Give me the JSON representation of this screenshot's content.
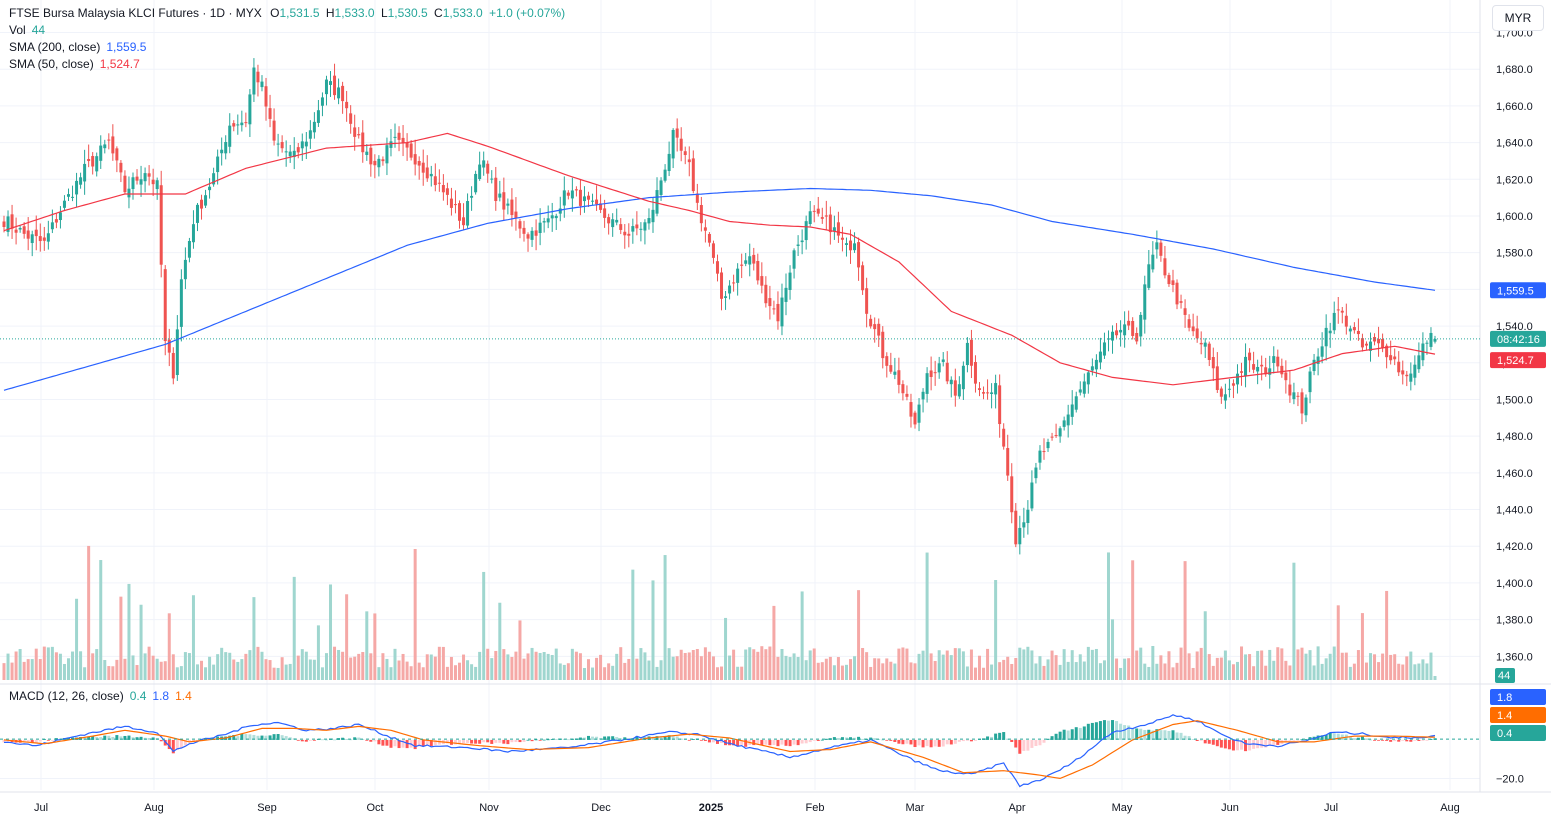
{
  "header": {
    "symbol": "FTSE Bursa Malaysia KLCI Futures",
    "interval": "1D",
    "exchange": "MYX",
    "open_label": "O",
    "open": "1,531.5",
    "high_label": "H",
    "high": "1,533.0",
    "low_label": "L",
    "low": "1,530.5",
    "close_label": "C",
    "close": "1,533.0",
    "change": "+1.0 (+0.07%)"
  },
  "indicators": {
    "vol_label": "Vol",
    "vol_value": "44",
    "sma200_label": "SMA (200, close)",
    "sma200_value": "1,559.5",
    "sma50_label": "SMA (50, close)",
    "sma50_value": "1,524.7",
    "macd_label": "MACD (12, 26, close)",
    "macd_hist": "0.4",
    "macd_line": "1.8",
    "macd_signal": "1.4"
  },
  "currency": "MYR",
  "colors": {
    "up": "#26a69a",
    "down": "#ef5350",
    "vol_up": "#9fd6cf",
    "vol_down": "#f5a8a6",
    "sma200": "#2962ff",
    "sma50": "#f23645",
    "macd": "#2962ff",
    "signal": "#ff6d00",
    "grid": "#f0f3fa",
    "text": "#131722"
  },
  "chart_data": {
    "type": "candlestick",
    "price_axis": {
      "ticks": [
        1360,
        1380,
        1400,
        1420,
        1440,
        1460,
        1480,
        1500,
        1520,
        1540,
        1560,
        1580,
        1600,
        1620,
        1640,
        1660,
        1680,
        1700
      ],
      "labels": [
        "1,360.0",
        "1,380.0",
        "1,400.0",
        "1,420.0",
        "1,440.0",
        "1,460.0",
        "1,480.0",
        "1,500.0",
        "1,520.0",
        "1,540.0",
        "1,560.0",
        "1,580.0",
        "1,600.0",
        "1,620.0",
        "1,640.0",
        "1,660.0",
        "1,680.0",
        "1,700.0"
      ],
      "range": [
        1346,
        1715
      ]
    },
    "macd_axis": {
      "ticks": [
        -20
      ],
      "labels": [
        "−20.0"
      ],
      "range": [
        -26,
        28
      ]
    },
    "time_axis": [
      "Jul",
      "Aug",
      "Sep",
      "Oct",
      "Nov",
      "Dec",
      "2025",
      "Feb",
      "Mar",
      "Apr",
      "May",
      "Jun",
      "Jul",
      "Aug"
    ],
    "badges": {
      "sma200": "1,559.5",
      "countdown": "08:42:16",
      "sma50": "1,524.7",
      "volume": "44",
      "macd": "1.8",
      "signal": "1.4",
      "hist": "0.4"
    },
    "last_price": 1533.0,
    "close_anchors": [
      [
        0,
        1598
      ],
      [
        5,
        1590
      ],
      [
        10,
        1585
      ],
      [
        14,
        1603
      ],
      [
        20,
        1625
      ],
      [
        26,
        1640
      ],
      [
        30,
        1614
      ],
      [
        35,
        1625
      ],
      [
        38,
        1616
      ],
      [
        40,
        1530
      ],
      [
        42,
        1515
      ],
      [
        44,
        1565
      ],
      [
        47,
        1598
      ],
      [
        52,
        1622
      ],
      [
        56,
        1650
      ],
      [
        60,
        1652
      ],
      [
        62,
        1680
      ],
      [
        64,
        1670
      ],
      [
        67,
        1640
      ],
      [
        72,
        1632
      ],
      [
        76,
        1646
      ],
      [
        80,
        1672
      ],
      [
        84,
        1666
      ],
      [
        88,
        1640
      ],
      [
        92,
        1628
      ],
      [
        97,
        1640
      ],
      [
        102,
        1632
      ],
      [
        106,
        1622
      ],
      [
        110,
        1610
      ],
      [
        114,
        1596
      ],
      [
        118,
        1632
      ],
      [
        122,
        1612
      ],
      [
        126,
        1600
      ],
      [
        130,
        1590
      ],
      [
        135,
        1597
      ],
      [
        140,
        1614
      ],
      [
        145,
        1606
      ],
      [
        150,
        1598
      ],
      [
        155,
        1590
      ],
      [
        160,
        1597
      ],
      [
        163,
        1620
      ],
      [
        166,
        1643
      ],
      [
        170,
        1626
      ],
      [
        172,
        1606
      ],
      [
        175,
        1585
      ],
      [
        178,
        1555
      ],
      [
        182,
        1570
      ],
      [
        185,
        1578
      ],
      [
        188,
        1560
      ],
      [
        192,
        1545
      ],
      [
        196,
        1580
      ],
      [
        200,
        1600
      ],
      [
        205,
        1595
      ],
      [
        209,
        1582
      ],
      [
        211,
        1588
      ],
      [
        214,
        1550
      ],
      [
        218,
        1525
      ],
      [
        222,
        1510
      ],
      [
        226,
        1485
      ],
      [
        229,
        1515
      ],
      [
        233,
        1518
      ],
      [
        236,
        1502
      ],
      [
        239,
        1530
      ],
      [
        241,
        1512
      ],
      [
        243,
        1502
      ],
      [
        246,
        1505
      ],
      [
        249,
        1460
      ],
      [
        251,
        1425
      ],
      [
        254,
        1442
      ],
      [
        257,
        1470
      ],
      [
        261,
        1478
      ],
      [
        265,
        1498
      ],
      [
        269,
        1513
      ],
      [
        273,
        1528
      ],
      [
        277,
        1538
      ],
      [
        281,
        1535
      ],
      [
        284,
        1572
      ],
      [
        286,
        1582
      ],
      [
        288,
        1570
      ],
      [
        291,
        1555
      ],
      [
        294,
        1538
      ],
      [
        298,
        1528
      ],
      [
        302,
        1500
      ],
      [
        305,
        1510
      ],
      [
        308,
        1520
      ],
      [
        312,
        1515
      ],
      [
        316,
        1522
      ],
      [
        319,
        1506
      ],
      [
        322,
        1495
      ],
      [
        325,
        1520
      ],
      [
        328,
        1538
      ],
      [
        331,
        1548
      ],
      [
        334,
        1540
      ],
      [
        337,
        1528
      ],
      [
        340,
        1530
      ],
      [
        344,
        1525
      ],
      [
        347,
        1513
      ],
      [
        350,
        1518
      ],
      [
        353,
        1533
      ],
      [
        355,
        1533
      ]
    ],
    "sma200_anchors": [
      [
        0,
        1505
      ],
      [
        40,
        1530
      ],
      [
        60,
        1548
      ],
      [
        80,
        1566
      ],
      [
        100,
        1584
      ],
      [
        120,
        1596
      ],
      [
        140,
        1604
      ],
      [
        160,
        1610
      ],
      [
        180,
        1613
      ],
      [
        200,
        1615
      ],
      [
        215,
        1614
      ],
      [
        230,
        1611
      ],
      [
        245,
        1606
      ],
      [
        260,
        1597
      ],
      [
        280,
        1590
      ],
      [
        300,
        1582
      ],
      [
        320,
        1572
      ],
      [
        340,
        1564
      ],
      [
        355,
        1559.5
      ]
    ],
    "sma50_anchors": [
      [
        0,
        1592
      ],
      [
        15,
        1603
      ],
      [
        30,
        1612
      ],
      [
        45,
        1612
      ],
      [
        60,
        1626
      ],
      [
        80,
        1637
      ],
      [
        100,
        1640
      ],
      [
        110,
        1645
      ],
      [
        120,
        1638
      ],
      [
        140,
        1622
      ],
      [
        160,
        1608
      ],
      [
        170,
        1603
      ],
      [
        180,
        1597
      ],
      [
        190,
        1595
      ],
      [
        200,
        1594
      ],
      [
        210,
        1590
      ],
      [
        222,
        1575
      ],
      [
        235,
        1548
      ],
      [
        250,
        1535
      ],
      [
        262,
        1520
      ],
      [
        275,
        1512
      ],
      [
        290,
        1508
      ],
      [
        305,
        1512
      ],
      [
        320,
        1516
      ],
      [
        332,
        1525
      ],
      [
        345,
        1529
      ],
      [
        355,
        1524.7
      ]
    ],
    "macd_anchors": [
      [
        0,
        -1
      ],
      [
        8,
        -3
      ],
      [
        20,
        3
      ],
      [
        30,
        7
      ],
      [
        38,
        4
      ],
      [
        42,
        -6
      ],
      [
        46,
        -2
      ],
      [
        55,
        3
      ],
      [
        62,
        8
      ],
      [
        68,
        9
      ],
      [
        75,
        5
      ],
      [
        82,
        6
      ],
      [
        88,
        8
      ],
      [
        94,
        3
      ],
      [
        102,
        -3
      ],
      [
        115,
        -4
      ],
      [
        125,
        -6
      ],
      [
        140,
        -4
      ],
      [
        150,
        -1
      ],
      [
        165,
        4
      ],
      [
        172,
        3
      ],
      [
        180,
        -2
      ],
      [
        195,
        -9
      ],
      [
        205,
        -4
      ],
      [
        215,
        0
      ],
      [
        225,
        -10
      ],
      [
        232,
        -16
      ],
      [
        240,
        -18
      ],
      [
        248,
        -12
      ],
      [
        252,
        -24
      ],
      [
        258,
        -20
      ],
      [
        265,
        -12
      ],
      [
        275,
        4
      ],
      [
        285,
        9
      ],
      [
        290,
        13
      ],
      [
        296,
        10
      ],
      [
        302,
        3
      ],
      [
        308,
        -2
      ],
      [
        316,
        -3
      ],
      [
        322,
        -1
      ],
      [
        330,
        4
      ],
      [
        338,
        3
      ],
      [
        345,
        1
      ],
      [
        355,
        1.8
      ]
    ],
    "signal_anchors": [
      [
        0,
        0
      ],
      [
        10,
        -2
      ],
      [
        22,
        2
      ],
      [
        30,
        5
      ],
      [
        40,
        2
      ],
      [
        46,
        -1
      ],
      [
        55,
        1
      ],
      [
        64,
        6
      ],
      [
        72,
        6
      ],
      [
        80,
        5
      ],
      [
        88,
        7
      ],
      [
        96,
        5
      ],
      [
        104,
        0
      ],
      [
        118,
        -3
      ],
      [
        130,
        -5
      ],
      [
        145,
        -4
      ],
      [
        160,
        1
      ],
      [
        170,
        3
      ],
      [
        180,
        1
      ],
      [
        195,
        -6
      ],
      [
        205,
        -5
      ],
      [
        215,
        -1
      ],
      [
        228,
        -9
      ],
      [
        238,
        -17
      ],
      [
        248,
        -16
      ],
      [
        256,
        -18
      ],
      [
        262,
        -20
      ],
      [
        270,
        -13
      ],
      [
        280,
        0
      ],
      [
        290,
        8
      ],
      [
        296,
        10
      ],
      [
        306,
        5
      ],
      [
        316,
        -1
      ],
      [
        325,
        -1
      ],
      [
        335,
        2
      ],
      [
        345,
        2
      ],
      [
        355,
        1.4
      ]
    ],
    "volume_level": 44
  }
}
